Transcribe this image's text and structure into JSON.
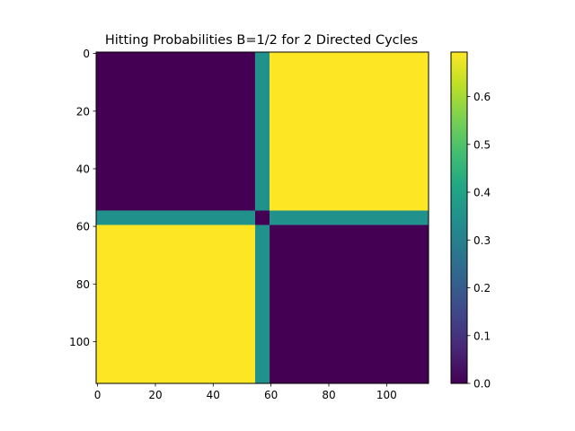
{
  "chart_data": {
    "type": "heatmap",
    "title": "Hitting Probabilities B=1/2 for 2 Directed Cycles",
    "xlabel": "",
    "ylabel": "",
    "n": 115,
    "xlim": [
      -0.5,
      114.5
    ],
    "ylim": [
      114.5,
      -0.5
    ],
    "x_ticks": [
      0,
      20,
      40,
      60,
      80,
      100
    ],
    "y_ticks": [
      0,
      20,
      40,
      60,
      80,
      100
    ],
    "x_tick_labels": [
      "0",
      "20",
      "40",
      "60",
      "80",
      "100"
    ],
    "y_tick_labels": [
      "0",
      "20",
      "40",
      "60",
      "80",
      "100"
    ],
    "regions": [
      {
        "name": "top-left-block",
        "rows": [
          0,
          54
        ],
        "cols": [
          0,
          54
        ],
        "value": 0.0
      },
      {
        "name": "top-vertical-band",
        "rows": [
          0,
          54
        ],
        "cols": [
          55,
          59
        ],
        "value": 0.3466
      },
      {
        "name": "top-right-block",
        "rows": [
          0,
          54
        ],
        "cols": [
          60,
          114
        ],
        "value": 0.6931
      },
      {
        "name": "left-horizontal-band",
        "rows": [
          55,
          59
        ],
        "cols": [
          0,
          54
        ],
        "value": 0.3466
      },
      {
        "name": "center-cell",
        "rows": [
          55,
          59
        ],
        "cols": [
          55,
          59
        ],
        "value": 0.0
      },
      {
        "name": "right-horizontal-band",
        "rows": [
          55,
          59
        ],
        "cols": [
          60,
          114
        ],
        "value": 0.3466
      },
      {
        "name": "bottom-left-block",
        "rows": [
          60,
          114
        ],
        "cols": [
          0,
          54
        ],
        "value": 0.6931
      },
      {
        "name": "bottom-vertical-band",
        "rows": [
          60,
          114
        ],
        "cols": [
          55,
          59
        ],
        "value": 0.3466
      },
      {
        "name": "bottom-right-block",
        "rows": [
          60,
          114
        ],
        "cols": [
          60,
          114
        ],
        "value": 0.0
      }
    ],
    "colorbar": {
      "colormap": "viridis",
      "range": [
        0.0,
        0.6931
      ],
      "ticks": [
        0.0,
        0.1,
        0.2,
        0.3,
        0.4,
        0.5,
        0.6
      ],
      "tick_labels": [
        "0.0",
        "0.1",
        "0.2",
        "0.3",
        "0.4",
        "0.5",
        "0.6"
      ]
    },
    "grid": false,
    "legend": "none"
  }
}
